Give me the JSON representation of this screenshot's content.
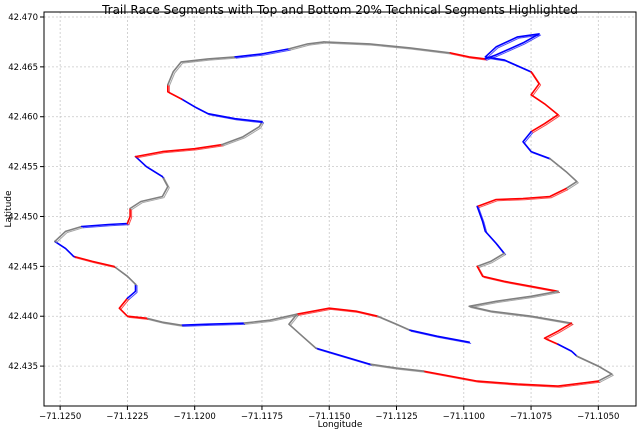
{
  "chart_data": {
    "type": "line",
    "title": "Trail Race Segments with Top and Bottom 20% Technical Segments Highlighted",
    "xlabel": "Longitude",
    "ylabel": "Latitude",
    "xlim": [
      -71.1256,
      -71.1036
    ],
    "ylim": [
      42.431,
      42.4705
    ],
    "xticks": [
      -71.125,
      -71.1225,
      -71.12,
      -71.1175,
      -71.115,
      -71.1125,
      -71.11,
      -71.1075,
      -71.105
    ],
    "xtick_labels": [
      "−71.1250",
      "−71.1225",
      "−71.1200",
      "−71.1175",
      "−71.1150",
      "−71.1125",
      "−71.1100",
      "−71.1075",
      "−71.1050"
    ],
    "yticks": [
      42.435,
      42.44,
      42.445,
      42.45,
      42.455,
      42.46,
      42.465,
      42.47
    ],
    "ytick_labels": [
      "42.435",
      "42.440",
      "42.445",
      "42.450",
      "42.455",
      "42.460",
      "42.465",
      "42.470"
    ],
    "grid": true,
    "colors": {
      "top": "#ff0000",
      "bottom": "#0000ff",
      "middle": "#808080"
    },
    "series": [
      {
        "color": "middle",
        "points": [
          [
            -71.1152,
            42.4675
          ],
          [
            -71.1135,
            42.4673
          ],
          [
            -71.112,
            42.4669
          ],
          [
            -71.1105,
            42.4664
          ]
        ]
      },
      {
        "color": "top",
        "points": [
          [
            -71.1105,
            42.4664
          ],
          [
            -71.1098,
            42.466
          ],
          [
            -71.1092,
            42.4658
          ]
        ]
      },
      {
        "color": "bottom",
        "points": [
          [
            -71.1092,
            42.4658
          ],
          [
            -71.1088,
            42.4662
          ],
          [
            -71.1078,
            42.4674
          ],
          [
            -71.1072,
            42.4683
          ],
          [
            -71.108,
            42.468
          ],
          [
            -71.1088,
            42.467
          ],
          [
            -71.1092,
            42.466
          ],
          [
            -71.1085,
            42.4657
          ],
          [
            -71.108,
            42.4651
          ],
          [
            -71.1075,
            42.4645
          ]
        ]
      },
      {
        "color": "top",
        "points": [
          [
            -71.1075,
            42.4645
          ],
          [
            -71.1072,
            42.4633
          ],
          [
            -71.1075,
            42.4622
          ],
          [
            -71.107,
            42.4613
          ],
          [
            -71.1065,
            42.4602
          ],
          [
            -71.107,
            42.4593
          ],
          [
            -71.1075,
            42.4585
          ]
        ]
      },
      {
        "color": "bottom",
        "points": [
          [
            -71.1075,
            42.4585
          ],
          [
            -71.1078,
            42.4575
          ],
          [
            -71.1075,
            42.4565
          ],
          [
            -71.1068,
            42.4558
          ]
        ]
      },
      {
        "color": "middle",
        "points": [
          [
            -71.1068,
            42.4558
          ],
          [
            -71.1062,
            42.4545
          ],
          [
            -71.1058,
            42.4535
          ],
          [
            -71.1062,
            42.4528
          ]
        ]
      },
      {
        "color": "top",
        "points": [
          [
            -71.1062,
            42.4528
          ],
          [
            -71.1068,
            42.452
          ],
          [
            -71.1078,
            42.4518
          ],
          [
            -71.1088,
            42.4517
          ],
          [
            -71.1095,
            42.451
          ]
        ]
      },
      {
        "color": "bottom",
        "points": [
          [
            -71.1095,
            42.451
          ],
          [
            -71.1093,
            42.4495
          ],
          [
            -71.1092,
            42.4485
          ],
          [
            -71.1088,
            42.4473
          ],
          [
            -71.1085,
            42.4463
          ]
        ]
      },
      {
        "color": "middle",
        "points": [
          [
            -71.1085,
            42.4463
          ],
          [
            -71.109,
            42.4455
          ],
          [
            -71.1095,
            42.445
          ]
        ]
      },
      {
        "color": "top",
        "points": [
          [
            -71.1095,
            42.445
          ],
          [
            -71.1093,
            42.444
          ],
          [
            -71.1085,
            42.4435
          ],
          [
            -71.1075,
            42.443
          ],
          [
            -71.1065,
            42.4425
          ]
        ]
      },
      {
        "color": "middle",
        "points": [
          [
            -71.1065,
            42.4425
          ],
          [
            -71.1075,
            42.442
          ],
          [
            -71.1088,
            42.4415
          ],
          [
            -71.1098,
            42.441
          ],
          [
            -71.109,
            42.4405
          ],
          [
            -71.1075,
            42.44
          ],
          [
            -71.106,
            42.4393
          ]
        ]
      },
      {
        "color": "top",
        "points": [
          [
            -71.106,
            42.4393
          ],
          [
            -71.1065,
            42.4385
          ],
          [
            -71.107,
            42.4378
          ],
          [
            -71.1065,
            42.4372
          ]
        ]
      },
      {
        "color": "bottom",
        "points": [
          [
            -71.1065,
            42.4372
          ],
          [
            -71.106,
            42.4365
          ],
          [
            -71.1058,
            42.436
          ]
        ]
      },
      {
        "color": "middle",
        "points": [
          [
            -71.1058,
            42.436
          ],
          [
            -71.105,
            42.435
          ],
          [
            -71.1045,
            42.4342
          ],
          [
            -71.105,
            42.4335
          ]
        ]
      },
      {
        "color": "top",
        "points": [
          [
            -71.105,
            42.4335
          ],
          [
            -71.1065,
            42.433
          ],
          [
            -71.108,
            42.4332
          ],
          [
            -71.1095,
            42.4335
          ],
          [
            -71.1105,
            42.434
          ],
          [
            -71.1115,
            42.4345
          ]
        ]
      },
      {
        "color": "middle",
        "points": [
          [
            -71.1115,
            42.4345
          ],
          [
            -71.1125,
            42.4348
          ],
          [
            -71.1135,
            42.4352
          ]
        ]
      },
      {
        "color": "bottom",
        "points": [
          [
            -71.1135,
            42.4352
          ],
          [
            -71.1145,
            42.436
          ],
          [
            -71.1155,
            42.4368
          ]
        ]
      },
      {
        "color": "middle",
        "points": [
          [
            -71.1155,
            42.4368
          ],
          [
            -71.116,
            42.438
          ],
          [
            -71.1165,
            42.4392
          ],
          [
            -71.1162,
            42.4402
          ]
        ]
      },
      {
        "color": "top",
        "points": [
          [
            -71.1162,
            42.4402
          ],
          [
            -71.115,
            42.4408
          ],
          [
            -71.114,
            42.4405
          ],
          [
            -71.1132,
            42.44
          ]
        ]
      },
      {
        "color": "middle",
        "points": [
          [
            -71.1132,
            42.44
          ],
          [
            -71.1125,
            42.4392
          ],
          [
            -71.112,
            42.4386
          ]
        ]
      },
      {
        "color": "bottom",
        "points": [
          [
            -71.112,
            42.4386
          ],
          [
            -71.111,
            42.438
          ],
          [
            -71.1098,
            42.4374
          ]
        ]
      },
      {
        "color": "middle",
        "points": [
          [
            -71.1162,
            42.4402
          ],
          [
            -71.1172,
            42.4396
          ],
          [
            -71.1182,
            42.4393
          ]
        ]
      },
      {
        "color": "bottom",
        "points": [
          [
            -71.1182,
            42.4393
          ],
          [
            -71.1195,
            42.4392
          ],
          [
            -71.1205,
            42.4391
          ]
        ]
      },
      {
        "color": "middle",
        "points": [
          [
            -71.1205,
            42.4391
          ],
          [
            -71.1212,
            42.4394
          ],
          [
            -71.1218,
            42.4398
          ]
        ]
      },
      {
        "color": "top",
        "points": [
          [
            -71.1218,
            42.4398
          ],
          [
            -71.1225,
            42.44
          ],
          [
            -71.1228,
            42.4408
          ],
          [
            -71.1225,
            42.4418
          ]
        ]
      },
      {
        "color": "bottom",
        "points": [
          [
            -71.1225,
            42.4418
          ],
          [
            -71.1222,
            42.4425
          ],
          [
            -71.1222,
            42.4432
          ]
        ]
      },
      {
        "color": "middle",
        "points": [
          [
            -71.1222,
            42.4432
          ],
          [
            -71.1225,
            42.444
          ],
          [
            -71.123,
            42.445
          ]
        ]
      },
      {
        "color": "top",
        "points": [
          [
            -71.123,
            42.445
          ],
          [
            -71.1238,
            42.4455
          ],
          [
            -71.1245,
            42.446
          ]
        ]
      },
      {
        "color": "bottom",
        "points": [
          [
            -71.1245,
            42.446
          ],
          [
            -71.1248,
            42.4468
          ],
          [
            -71.1252,
            42.4475
          ]
        ]
      },
      {
        "color": "middle",
        "points": [
          [
            -71.1252,
            42.4475
          ],
          [
            -71.1248,
            42.4485
          ],
          [
            -71.1242,
            42.449
          ]
        ]
      },
      {
        "color": "bottom",
        "points": [
          [
            -71.1242,
            42.449
          ],
          [
            -71.1232,
            42.4492
          ],
          [
            -71.1225,
            42.4493
          ]
        ]
      },
      {
        "color": "top",
        "points": [
          [
            -71.1225,
            42.4493
          ],
          [
            -71.1224,
            42.45
          ],
          [
            -71.1224,
            42.4508
          ]
        ]
      },
      {
        "color": "middle",
        "points": [
          [
            -71.1224,
            42.4508
          ],
          [
            -71.122,
            42.4515
          ],
          [
            -71.1212,
            42.452
          ],
          [
            -71.121,
            42.453
          ],
          [
            -71.1212,
            42.454
          ]
        ]
      },
      {
        "color": "bottom",
        "points": [
          [
            -71.1212,
            42.454
          ],
          [
            -71.1218,
            42.455
          ],
          [
            -71.1222,
            42.456
          ]
        ]
      },
      {
        "color": "top",
        "points": [
          [
            -71.1222,
            42.456
          ],
          [
            -71.1212,
            42.4565
          ],
          [
            -71.12,
            42.4568
          ],
          [
            -71.119,
            42.4572
          ]
        ]
      },
      {
        "color": "middle",
        "points": [
          [
            -71.119,
            42.4572
          ],
          [
            -71.1182,
            42.458
          ],
          [
            -71.1176,
            42.459
          ],
          [
            -71.1175,
            42.4595
          ]
        ]
      },
      {
        "color": "bottom",
        "points": [
          [
            -71.1175,
            42.4595
          ],
          [
            -71.1185,
            42.4598
          ],
          [
            -71.1195,
            42.4603
          ],
          [
            -71.12,
            42.461
          ],
          [
            -71.1205,
            42.4618
          ]
        ]
      },
      {
        "color": "top",
        "points": [
          [
            -71.1205,
            42.4618
          ],
          [
            -71.121,
            42.4625
          ],
          [
            -71.121,
            42.4632
          ]
        ]
      },
      {
        "color": "middle",
        "points": [
          [
            -71.121,
            42.4632
          ],
          [
            -71.1208,
            42.4645
          ],
          [
            -71.1205,
            42.4655
          ],
          [
            -71.1195,
            42.4658
          ],
          [
            -71.1185,
            42.466
          ]
        ]
      },
      {
        "color": "bottom",
        "points": [
          [
            -71.1185,
            42.466
          ],
          [
            -71.1175,
            42.4663
          ],
          [
            -71.1165,
            42.4668
          ]
        ]
      },
      {
        "color": "middle",
        "points": [
          [
            -71.1165,
            42.4668
          ],
          [
            -71.1158,
            42.4673
          ],
          [
            -71.1152,
            42.4675
          ]
        ]
      }
    ]
  }
}
